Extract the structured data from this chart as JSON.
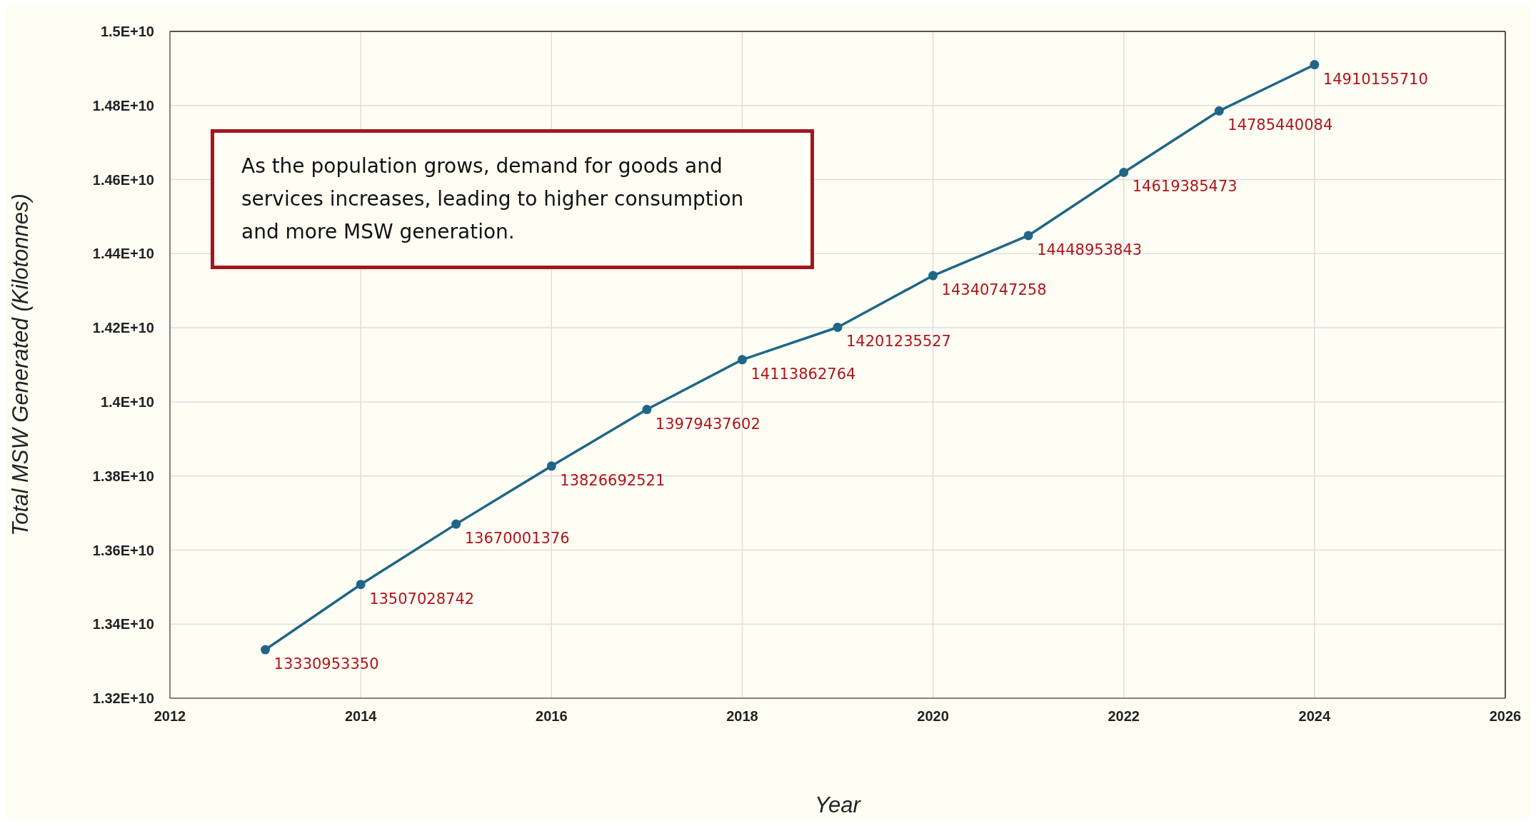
{
  "chart_data": {
    "type": "line",
    "xlabel": "Year",
    "ylabel": "Total MSW Generated (Kilotonnes)",
    "annotations": [
      "As the population grows, demand for goods and services increases, leading to higher consumption and more MSW generation."
    ],
    "x": [
      2013,
      2014,
      2015,
      2016,
      2017,
      2018,
      2019,
      2020,
      2021,
      2022,
      2023,
      2024
    ],
    "series": [
      {
        "color": "#1f6688",
        "values": [
          13330953350,
          13507028742,
          13670001376,
          13826692521,
          13979437602,
          14113862764,
          14201235527,
          14340747258,
          14448953843,
          14619385473,
          14785440084,
          14910155710
        ]
      }
    ],
    "data_labels": true,
    "xlim": [
      2012,
      2026
    ],
    "xticks": [
      2012,
      2014,
      2016,
      2018,
      2020,
      2022,
      2024,
      2026
    ],
    "ylim": [
      13200000000,
      15000000000
    ],
    "yticks": [
      {
        "value": 13200000000,
        "label": "1.32E+10"
      },
      {
        "value": 13400000000,
        "label": "1.34E+10"
      },
      {
        "value": 13600000000,
        "label": "1.36E+10"
      },
      {
        "value": 13800000000,
        "label": "1.38E+10"
      },
      {
        "value": 14000000000,
        "label": "1.4E+10"
      },
      {
        "value": 14200000000,
        "label": "1.42E+10"
      },
      {
        "value": 14400000000,
        "label": "1.44E+10"
      },
      {
        "value": 14600000000,
        "label": "1.46E+10"
      },
      {
        "value": 14800000000,
        "label": "1.48E+10"
      },
      {
        "value": 15000000000,
        "label": "1.5E+10"
      }
    ],
    "grid": true,
    "marker": "circle",
    "line_style": "solid"
  }
}
